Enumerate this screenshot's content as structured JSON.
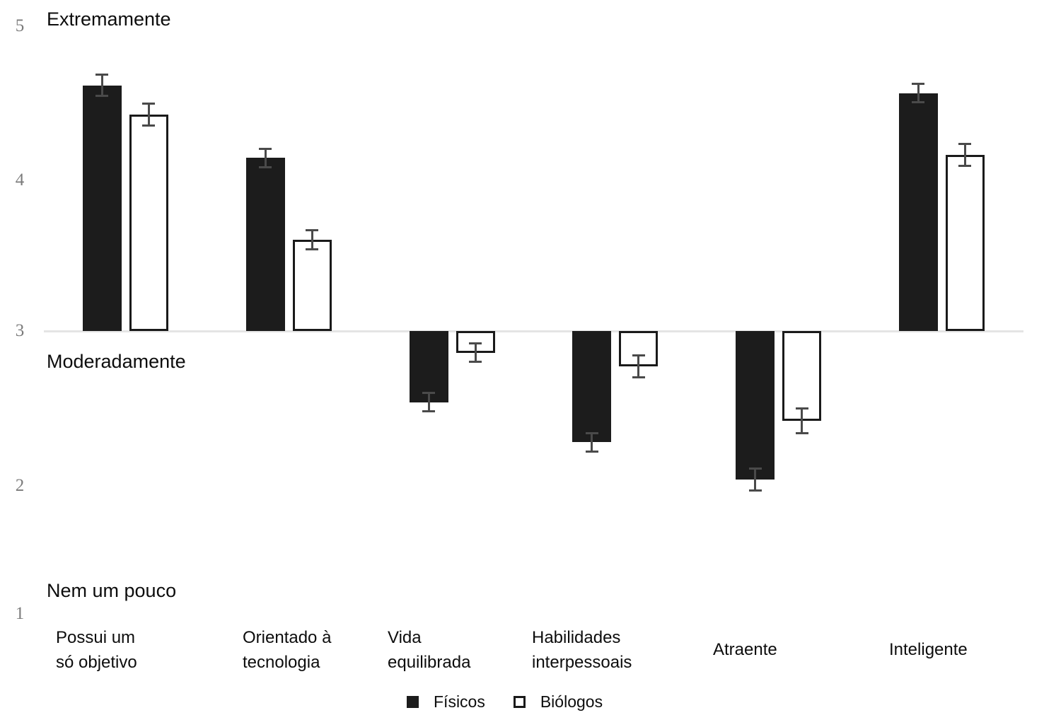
{
  "chart_data": {
    "type": "bar",
    "title": "",
    "categories": [
      "Possui um\nsó objetivo",
      "Orientado à\ntecnologia",
      "Vida\nequilibrada",
      "Habilidades\ninterpessoais",
      "Atraente",
      "Inteligente"
    ],
    "series": [
      {
        "name": "Físicos",
        "style": "filled",
        "values": [
          4.59,
          4.12,
          2.54,
          2.28,
          2.04,
          4.54
        ],
        "errors": [
          0.07,
          0.06,
          0.06,
          0.06,
          0.07,
          0.06
        ]
      },
      {
        "name": "Biólogos",
        "style": "outlined",
        "values": [
          4.4,
          3.59,
          2.86,
          2.77,
          2.42,
          4.14
        ],
        "errors": [
          0.07,
          0.06,
          0.06,
          0.07,
          0.08,
          0.07
        ]
      }
    ],
    "baseline": 3,
    "ylim": [
      1,
      5
    ],
    "yticks": [
      5,
      4,
      3,
      2,
      1
    ],
    "ytick_descriptors": {
      "5": "Extremamente",
      "3": "Moderadamente",
      "1": "Nem um pouco"
    },
    "grid": false,
    "legend_position": "bottom",
    "error_bars": true
  },
  "axis": {
    "tick_labels": [
      "5",
      "4",
      "3",
      "2",
      "1"
    ],
    "descriptors": [
      "Extremamente",
      "Moderadamente",
      "Nem um pouco"
    ]
  },
  "legend": {
    "items": [
      {
        "label": "Físicos",
        "swatch": "filled"
      },
      {
        "label": "Biólogos",
        "swatch": "outlined"
      }
    ]
  },
  "colors": {
    "bar_fill": "#1c1c1c",
    "bar_outline": "#1a1a1a",
    "error_bar": "#4a4a4a",
    "axis_line": "#e4e4e4",
    "tick_text": "#7b7b7b",
    "label_text": "#0d0d0d"
  }
}
